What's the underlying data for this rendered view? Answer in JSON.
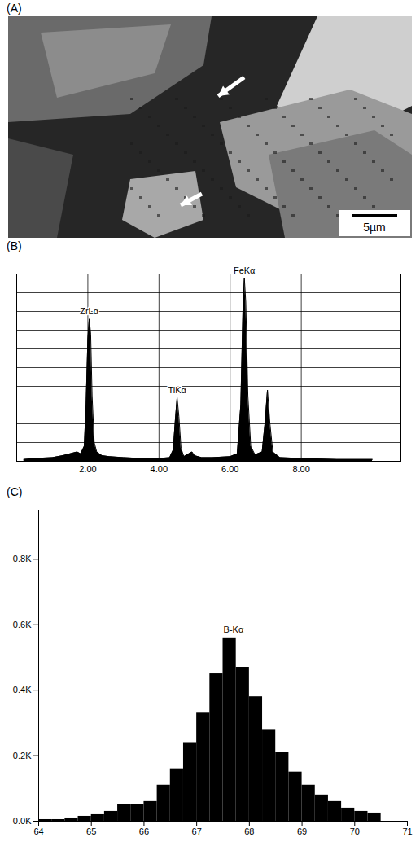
{
  "chart_data": [
    {
      "type": "image",
      "title": "(A)",
      "annotations": [
        {
          "text": "5µm"
        }
      ]
    },
    {
      "type": "line",
      "title": "(B)",
      "x": [
        0.2,
        0.5,
        1.0,
        1.3,
        1.5,
        1.7,
        1.8,
        1.9,
        1.95,
        2.0,
        2.04,
        2.08,
        2.12,
        2.18,
        2.25,
        2.4,
        2.6,
        3.0,
        3.5,
        4.0,
        4.3,
        4.4,
        4.46,
        4.51,
        4.56,
        4.62,
        4.7,
        4.93,
        5.0,
        5.2,
        5.5,
        6.0,
        6.2,
        6.3,
        6.36,
        6.4,
        6.44,
        6.5,
        6.58,
        6.7,
        6.9,
        6.98,
        7.05,
        7.12,
        7.2,
        7.4,
        8.0,
        9.0,
        10.0
      ],
      "values": [
        0.1,
        0.15,
        0.2,
        0.3,
        0.4,
        0.5,
        0.4,
        0.8,
        3.0,
        6.5,
        7.6,
        6.8,
        3.5,
        1.0,
        0.5,
        0.3,
        0.25,
        0.2,
        0.15,
        0.15,
        0.2,
        0.6,
        2.2,
        3.4,
        2.4,
        0.7,
        0.25,
        0.5,
        0.3,
        0.2,
        0.2,
        0.25,
        0.4,
        3.0,
        8.0,
        9.8,
        8.5,
        3.5,
        0.8,
        0.35,
        0.5,
        2.0,
        3.8,
        2.0,
        0.5,
        0.2,
        0.15,
        0.1,
        0.1
      ],
      "color": "#000000",
      "xlim": [
        0,
        10.8
      ],
      "ylim": [
        0,
        10
      ],
      "xticks": [
        {
          "value": 2,
          "label": "2.00"
        },
        {
          "value": 4,
          "label": "4.00"
        },
        {
          "value": 6,
          "label": "6.00"
        },
        {
          "value": 8,
          "label": "8.00"
        }
      ],
      "yticks": [
        0,
        1,
        2,
        3,
        4,
        5,
        6,
        7,
        8,
        9,
        10
      ],
      "grid": true,
      "tick_labels": "x",
      "annotations": [
        {
          "text": "ZrLα",
          "x": 2.04,
          "y": 7.6
        },
        {
          "text": "TiKα",
          "x": 4.51,
          "y": 3.4
        },
        {
          "text": "FeKα",
          "x": 6.4,
          "y": 9.8
        }
      ]
    },
    {
      "type": "histogram",
      "title": "(C)",
      "bins": [
        64.0,
        64.25,
        64.5,
        64.75,
        65.0,
        65.25,
        65.5,
        65.75,
        66.0,
        66.25,
        66.5,
        66.75,
        67.0,
        67.25,
        67.5,
        67.75,
        68.0,
        68.25,
        68.5,
        68.75,
        69.0,
        69.25,
        69.5,
        69.75,
        70.0,
        70.25,
        70.5
      ],
      "values": [
        5,
        5,
        10,
        15,
        20,
        30,
        50,
        50,
        60,
        110,
        160,
        240,
        330,
        450,
        560,
        470,
        380,
        280,
        210,
        150,
        110,
        80,
        60,
        40,
        30,
        25
      ],
      "color": "#000000",
      "xlim": [
        64,
        71
      ],
      "ylim": [
        0,
        950
      ],
      "xticks": [
        64,
        65,
        66,
        67,
        68,
        69,
        70,
        71
      ],
      "yticks": [
        {
          "value": 0,
          "label": "0.0K"
        },
        {
          "value": 200,
          "label": "0.2K"
        },
        {
          "value": 400,
          "label": "0.4K"
        },
        {
          "value": 600,
          "label": "0.6K"
        },
        {
          "value": 800,
          "label": "0.8K"
        }
      ],
      "annotations": [
        {
          "text": "B-Kα",
          "x": 67.7,
          "y": 560
        }
      ]
    }
  ]
}
